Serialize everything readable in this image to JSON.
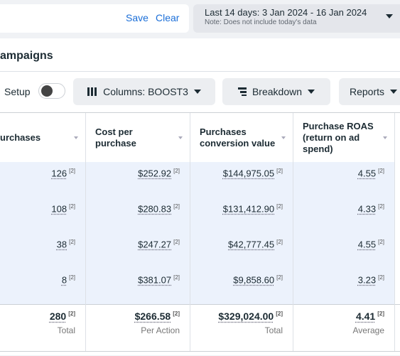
{
  "topbar": {
    "save": "Save",
    "clear": "Clear",
    "date_range": "Last 14 days: 3 Jan 2024 - 16 Jan 2024",
    "date_note": "Note: Does not include today's data"
  },
  "section_title": "ampaigns",
  "toolbar": {
    "setup": "Setup",
    "columns": "Columns: BOOST3",
    "breakdown": "Breakdown",
    "reports": "Reports"
  },
  "table": {
    "columns": [
      "urchases",
      "Cost per purchase",
      "Purchases conversion value",
      "Purchase ROAS (return on ad spend)"
    ],
    "rows": [
      [
        {
          "value": "126",
          "note": "[2]"
        },
        {
          "value": "$252.92",
          "note": "[2]"
        },
        {
          "value": "$144,975.05",
          "note": "[2]"
        },
        {
          "value": "4.55",
          "note": "[2]"
        }
      ],
      [
        {
          "value": "108",
          "note": "[2]"
        },
        {
          "value": "$280.83",
          "note": "[2]"
        },
        {
          "value": "$131,412.90",
          "note": "[2]"
        },
        {
          "value": "4.33",
          "note": "[2]"
        }
      ],
      [
        {
          "value": "38",
          "note": "[2]"
        },
        {
          "value": "$247.27",
          "note": "[2]"
        },
        {
          "value": "$42,777.45",
          "note": "[2]"
        },
        {
          "value": "4.55",
          "note": "[2]"
        }
      ],
      [
        {
          "value": "8",
          "note": "[2]"
        },
        {
          "value": "$381.07",
          "note": "[2]"
        },
        {
          "value": "$9,858.60",
          "note": "[2]"
        },
        {
          "value": "3.23",
          "note": "[2]"
        }
      ]
    ],
    "totals": [
      {
        "value": "280",
        "note": "[2]",
        "label": "Total"
      },
      {
        "value": "$266.58",
        "note": "[2]",
        "label": "Per Action"
      },
      {
        "value": "$329,024.00",
        "note": "[2]",
        "label": "Total"
      },
      {
        "value": "4.41",
        "note": "[2]",
        "label": "Average"
      }
    ]
  }
}
